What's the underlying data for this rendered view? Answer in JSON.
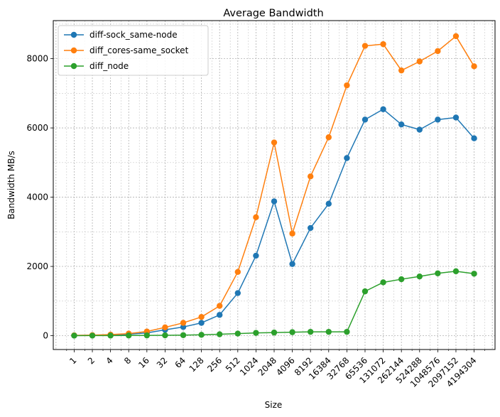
{
  "chart_data": {
    "type": "line",
    "title": "Average Bandwidth",
    "xlabel": "Size",
    "ylabel": "Bandwidth MB/s",
    "x_scale": "log2",
    "x": [
      1,
      2,
      4,
      8,
      16,
      32,
      64,
      128,
      256,
      512,
      1024,
      2048,
      4096,
      8192,
      16384,
      32768,
      65536,
      131072,
      262144,
      524288,
      1048576,
      2097152,
      4194304
    ],
    "xticks": [
      "1",
      "2",
      "4",
      "8",
      "16",
      "32",
      "64",
      "128",
      "256",
      "512",
      "1024",
      "2048",
      "4096",
      "8192",
      "16384",
      "32768",
      "65536",
      "131072",
      "262144",
      "524288",
      "1048576",
      "2097152",
      "4194304"
    ],
    "yticks": [
      "0",
      "2000",
      "4000",
      "6000",
      "8000"
    ],
    "ylim": [
      -400,
      9100
    ],
    "grid": true,
    "legend_position": "top-left",
    "series": [
      {
        "name": "diff-sock_same-node",
        "color": "#1f77b4",
        "values": [
          5,
          10,
          20,
          40,
          80,
          170,
          250,
          370,
          600,
          1230,
          2310,
          3880,
          2070,
          3110,
          3810,
          5130,
          6240,
          6540,
          6100,
          5950,
          6240,
          6300,
          5700
        ]
      },
      {
        "name": "diff_cores-same_socket",
        "color": "#ff7f0e",
        "values": [
          8,
          15,
          30,
          60,
          120,
          240,
          370,
          540,
          860,
          1840,
          3420,
          5580,
          2950,
          4600,
          5730,
          7230,
          8370,
          8420,
          7660,
          7920,
          8220,
          8650,
          7780
        ]
      },
      {
        "name": "diff_node",
        "color": "#2ca02c",
        "values": [
          1,
          2,
          3,
          5,
          8,
          10,
          15,
          25,
          40,
          60,
          80,
          90,
          100,
          110,
          110,
          110,
          1280,
          1540,
          1630,
          1710,
          1800,
          1860,
          1790
        ]
      }
    ]
  }
}
